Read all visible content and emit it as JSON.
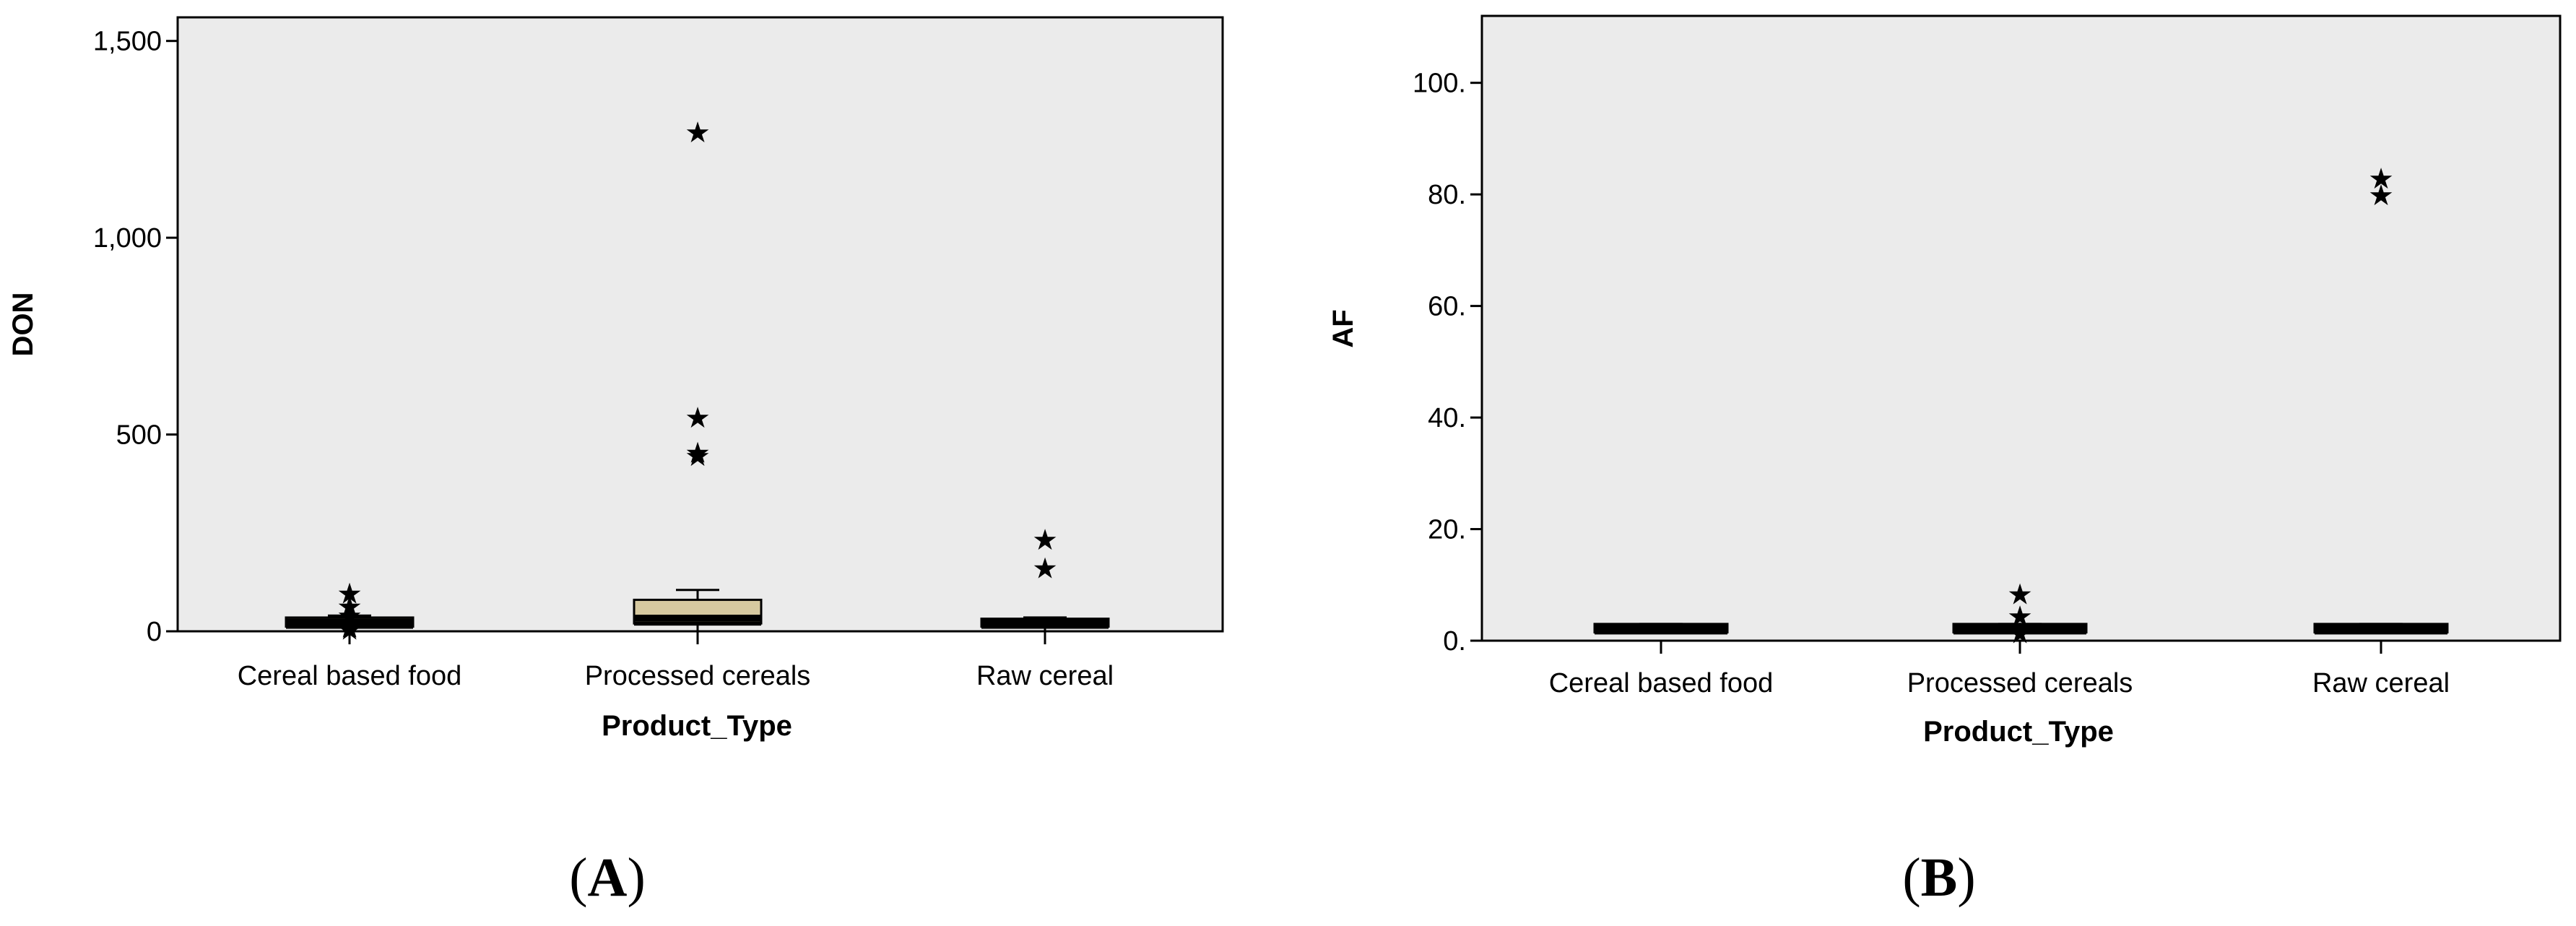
{
  "chart_data": [
    {
      "type": "box",
      "panel_label": "A",
      "xlabel": "Product_Type",
      "ylabel": "DON",
      "ylim": [
        0,
        1560
      ],
      "yticks": [
        0,
        500,
        1000,
        1500
      ],
      "ytick_labels": [
        "0",
        "500",
        "1,000",
        "1,500"
      ],
      "categories": [
        "Cereal based food",
        "Processed cereals",
        "Raw cereal"
      ],
      "box_fill": "#d6c9a0",
      "plot_background": "#ebebeb",
      "boxes": [
        {
          "category": "Cereal based food",
          "min": 0,
          "q1": 12,
          "median": 24,
          "q3": 35,
          "max": 40,
          "outliers": [
            6,
            12,
            42,
            65,
            98
          ]
        },
        {
          "category": "Processed cereals",
          "min": 0,
          "q1": 20,
          "median": 34,
          "q3": 80,
          "max": 105,
          "outliers": [
            448,
            456,
            545,
            1270
          ]
        },
        {
          "category": "Raw cereal",
          "min": 0,
          "q1": 12,
          "median": 24,
          "q3": 32,
          "max": 35,
          "outliers": [
            162,
            235
          ]
        }
      ]
    },
    {
      "type": "box",
      "panel_label": "B",
      "xlabel": "Product_Type",
      "ylabel": "AF",
      "ylim": [
        0,
        112
      ],
      "yticks": [
        0,
        20,
        40,
        60,
        80,
        100
      ],
      "ytick_labels": [
        "0.",
        "20.",
        "40.",
        "60.",
        "80.",
        "100."
      ],
      "categories": [
        "Cereal based food",
        "Processed cereals",
        "Raw cereal"
      ],
      "box_fill": "#d6c9a0",
      "plot_background": "#ebebeb",
      "boxes": [
        {
          "category": "Cereal based food",
          "min": 1.5,
          "q1": 1.5,
          "median": 2.3,
          "q3": 3.0,
          "max": 3.0,
          "outliers": []
        },
        {
          "category": "Processed cereals",
          "min": 1.5,
          "q1": 1.5,
          "median": 2.3,
          "q3": 3.0,
          "max": 3.0,
          "outliers": [
            1.5,
            4.5,
            8.5
          ]
        },
        {
          "category": "Raw cereal",
          "min": 1.5,
          "q1": 1.5,
          "median": 2.3,
          "q3": 3.0,
          "max": 3.0,
          "outliers": [
            80,
            83
          ]
        }
      ]
    }
  ]
}
